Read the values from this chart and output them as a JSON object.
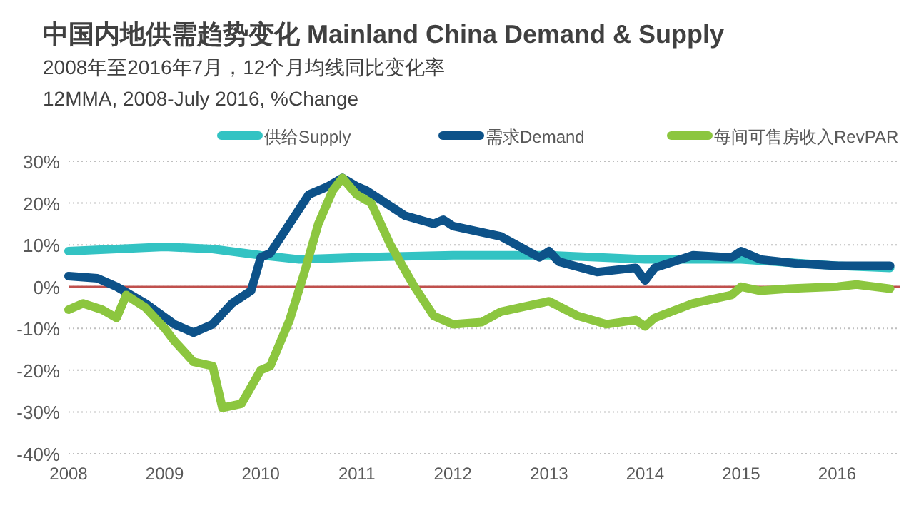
{
  "chart_data": {
    "type": "line",
    "title": "中国内地供需趋势变化 Mainland China Demand & Supply",
    "subtitle": "2008年至2016年7月，12个月均线同比变化率",
    "annotations": [
      "12MMA, 2008-July 2016, %Change"
    ],
    "xlim": [
      2008,
      2016.65
    ],
    "xticks": [
      2008,
      2009,
      2010,
      2011,
      2012,
      2013,
      2014,
      2015,
      2016
    ],
    "ylim": [
      -40,
      30
    ],
    "yticks": [
      {
        "value": -40,
        "label": "-40%"
      },
      {
        "value": -30,
        "label": "-30%"
      },
      {
        "value": -20,
        "label": "-20%"
      },
      {
        "value": -10,
        "label": "-10%"
      },
      {
        "value": 0,
        "label": "0%"
      },
      {
        "value": 10,
        "label": "10%"
      },
      {
        "value": 20,
        "label": "20%"
      },
      {
        "value": 30,
        "label": "30%"
      }
    ],
    "grid": "y",
    "legend": "top",
    "line_style": "solid",
    "marker": "none",
    "ref_lines": [
      {
        "axis": "y",
        "value": 0,
        "color": "#c0504d",
        "line_style": "solid"
      }
    ],
    "series": [
      {
        "name": "供给Supply",
        "color": "#33c3c3",
        "x": [
          2008,
          2008.5,
          2009,
          2009.5,
          2010,
          2010.4,
          2011,
          2012,
          2013,
          2014,
          2015,
          2016,
          2016.55
        ],
        "values": [
          8.5,
          9,
          9.5,
          9,
          7.5,
          6.5,
          7,
          7.5,
          7.5,
          6.5,
          6.5,
          5,
          4.5
        ]
      },
      {
        "name": "需求Demand",
        "color": "#0d5289",
        "x": [
          2008,
          2008.3,
          2008.5,
          2008.8,
          2009.1,
          2009.3,
          2009.5,
          2009.7,
          2009.9,
          2010,
          2010.1,
          2010.3,
          2010.5,
          2010.7,
          2010.85,
          2011,
          2011.1,
          2011.3,
          2011.5,
          2011.8,
          2011.9,
          2012,
          2012.5,
          2012.9,
          2013,
          2013.1,
          2013.5,
          2013.9,
          2014,
          2014.1,
          2014.5,
          2014.9,
          2015,
          2015.2,
          2015.6,
          2016,
          2016.2,
          2016.55
        ],
        "values": [
          2.5,
          2,
          0,
          -4,
          -9,
          -11,
          -9,
          -4,
          -1,
          7,
          8,
          15,
          22,
          24,
          26,
          24,
          23,
          20,
          17,
          15,
          16,
          14.5,
          12,
          7,
          8.5,
          6,
          3.5,
          4.5,
          1.5,
          4.5,
          7.5,
          7,
          8.5,
          6.5,
          5.5,
          5,
          5,
          5
        ]
      },
      {
        "name": "每间可售房收入RevPAR",
        "color": "#8cc63f",
        "x": [
          2008,
          2008.15,
          2008.35,
          2008.5,
          2008.6,
          2008.8,
          2009,
          2009.1,
          2009.3,
          2009.5,
          2009.6,
          2009.8,
          2010,
          2010.1,
          2010.3,
          2010.45,
          2010.6,
          2010.75,
          2010.85,
          2011,
          2011.15,
          2011.35,
          2011.6,
          2011.8,
          2012,
          2012.3,
          2012.5,
          2012.9,
          2013,
          2013.3,
          2013.6,
          2013.9,
          2014,
          2014.1,
          2014.5,
          2014.9,
          2015,
          2015.2,
          2015.5,
          2016,
          2016.2,
          2016.55
        ],
        "values": [
          -5.5,
          -4,
          -5.5,
          -7.5,
          -2,
          -5,
          -10,
          -13,
          -18,
          -19,
          -29,
          -28,
          -20,
          -19,
          -8,
          3,
          15,
          23,
          26,
          22,
          20,
          10,
          0,
          -7,
          -9,
          -8.5,
          -6,
          -4,
          -3.5,
          -7,
          -9,
          -8,
          -9.5,
          -7.5,
          -4,
          -2,
          0,
          -1,
          -0.5,
          0,
          0.5,
          -0.5
        ]
      }
    ]
  }
}
